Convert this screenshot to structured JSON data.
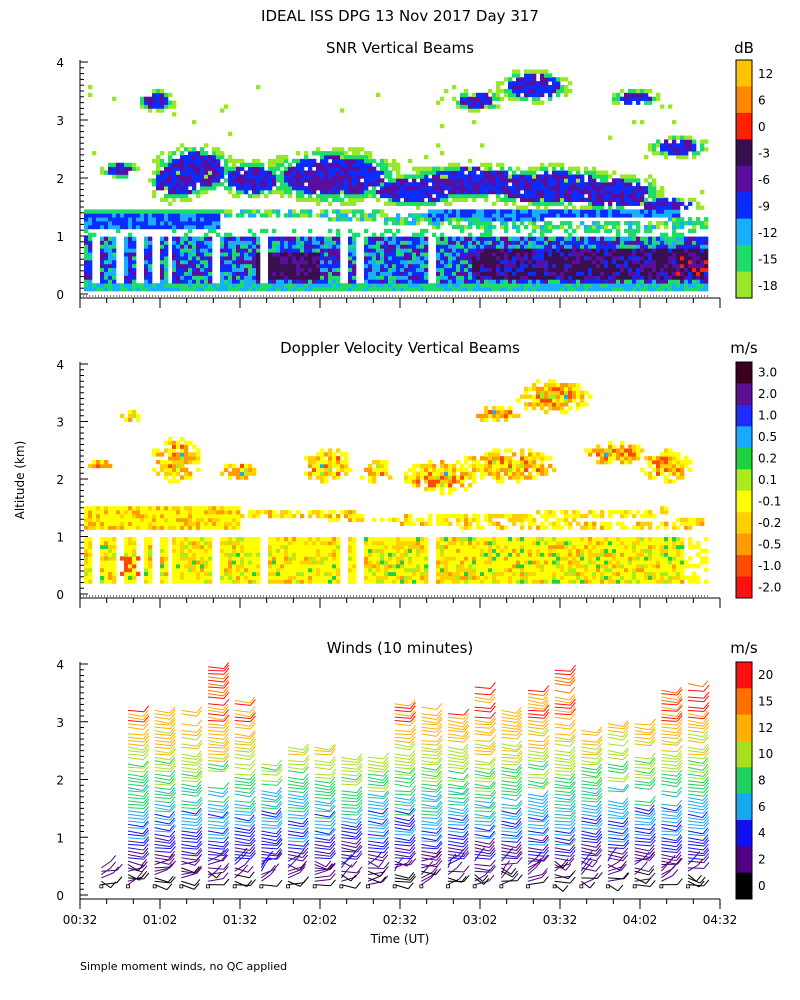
{
  "figure_title": "IDEAL ISS DPG  13 Nov 2017 Day 317",
  "y_axis_label": "Altitude (km)",
  "x_axis_label": "Time (UT)",
  "footnote": "Simple moment winds, no QC applied",
  "chart_data": [
    {
      "type": "heatmap",
      "title": "SNR Vertical Beams",
      "colorbar_unit": "dB",
      "colorbar_labels": [
        "12",
        "6",
        "0",
        "-3",
        "-6",
        "-9",
        "-12",
        "-15",
        "-18"
      ],
      "colorbar_colors": [
        "#ffc400",
        "#ff8800",
        "#ff2200",
        "#3a0f50",
        "#5a0ea0",
        "#0a2cff",
        "#1aaeff",
        "#1fdc6a",
        "#9ae62a"
      ],
      "x_ticks": [
        "00:32",
        "01:02",
        "01:32",
        "02:02",
        "02:32",
        "03:02",
        "03:32",
        "04:02",
        "04:32"
      ],
      "y_ticks": [
        "0",
        "1",
        "2",
        "3",
        "4"
      ],
      "ylim": [
        0,
        4
      ],
      "xlim_hours": [
        0.5333,
        4.5333
      ]
    },
    {
      "type": "heatmap",
      "title": "Doppler Velocity Vertical Beams",
      "colorbar_unit": "m/s",
      "colorbar_labels": [
        "3.0",
        "2.0",
        "1.0",
        "0.5",
        "0.2",
        "0.1",
        "-0.1",
        "-0.2",
        "-0.5",
        "-1.0",
        "-2.0"
      ],
      "colorbar_colors": [
        "#3a0020",
        "#5a1090",
        "#1a2cff",
        "#19aaff",
        "#20d040",
        "#a8ec20",
        "#ffff00",
        "#ffd000",
        "#ff9a00",
        "#ff4a00",
        "#ff1010"
      ],
      "x_ticks": [
        "00:32",
        "01:02",
        "01:32",
        "02:02",
        "02:32",
        "03:02",
        "03:32",
        "04:02",
        "04:32"
      ],
      "y_ticks": [
        "0",
        "1",
        "2",
        "3",
        "4"
      ],
      "ylim": [
        0,
        4
      ]
    },
    {
      "type": "scatter",
      "title": "Winds (10 minutes)",
      "colorbar_unit": "m/s",
      "colorbar_labels": [
        "20",
        "15",
        "12",
        "10",
        "8",
        "6",
        "4",
        "2",
        "0"
      ],
      "colorbar_colors": [
        "#ff1010",
        "#ff7000",
        "#ffb000",
        "#a8e020",
        "#20d060",
        "#18a8f0",
        "#1010f0",
        "#500080",
        "#000000"
      ],
      "x_ticks": [
        "00:32",
        "01:02",
        "01:32",
        "02:02",
        "02:32",
        "03:02",
        "03:32",
        "04:02",
        "04:32"
      ],
      "y_ticks": [
        "0",
        "1",
        "2",
        "3",
        "4"
      ],
      "ylim": [
        0,
        4
      ],
      "profile_times": [
        "00:40",
        "00:50",
        "01:00",
        "01:10",
        "01:20",
        "01:30",
        "01:40",
        "01:50",
        "02:00",
        "02:10",
        "02:20",
        "02:30",
        "02:40",
        "02:50",
        "03:00",
        "03:10",
        "03:20",
        "03:30",
        "03:40",
        "03:50",
        "04:00",
        "04:10",
        "04:20"
      ],
      "profile_top_km": [
        0.5,
        3.2,
        3.2,
        3.2,
        4.0,
        3.4,
        2.3,
        2.6,
        2.6,
        2.4,
        2.4,
        3.4,
        3.3,
        3.2,
        3.7,
        3.2,
        3.6,
        3.9,
        2.9,
        3.0,
        3.0,
        3.6,
        3.7
      ]
    }
  ]
}
